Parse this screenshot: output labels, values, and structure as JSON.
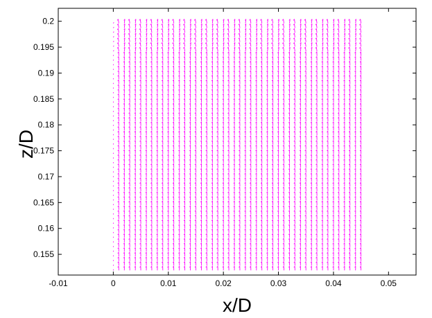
{
  "chart_data": {
    "type": "quiver",
    "xlabel": "x/D",
    "ylabel": "z/D",
    "xlim": [
      -0.01,
      0.055
    ],
    "ylim": [
      0.151,
      0.2025
    ],
    "xticks": [
      "-0.01",
      "0",
      "0.01",
      "0.02",
      "0.03",
      "0.04",
      "0.05"
    ],
    "xtick_values": [
      -0.01,
      0,
      0.01,
      0.02,
      0.03,
      0.04,
      0.05
    ],
    "yticks": [
      "0.155",
      "0.16",
      "0.165",
      "0.17",
      "0.175",
      "0.18",
      "0.185",
      "0.19",
      "0.195",
      "0.2"
    ],
    "ytick_values": [
      0.155,
      0.16,
      0.165,
      0.17,
      0.175,
      0.18,
      0.185,
      0.19,
      0.195,
      0.2
    ],
    "vector_field": {
      "x_range": [
        0,
        0.0445
      ],
      "x_spacing": 0.001,
      "z_range": [
        0.151,
        0.2
      ],
      "z_spacing": 0.0009,
      "direction": "predominantly vertical (upward), slight tilt near top",
      "color": "#ff00ff"
    },
    "grid": false,
    "legend": "none"
  }
}
